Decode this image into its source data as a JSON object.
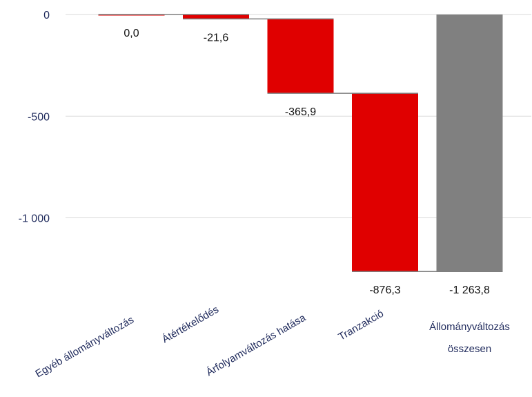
{
  "chart_data": {
    "type": "waterfall",
    "title": "",
    "xlabel": "",
    "ylabel": "",
    "ylim": [
      -1300,
      0
    ],
    "yticks": [
      0,
      -500,
      -1000
    ],
    "ytick_labels": [
      "0",
      "-500",
      "-1 000"
    ],
    "grid": true,
    "legend": "none",
    "categories": [
      "Egyéb állományváltozás",
      "Átértékelődés",
      "Árfolyamváltozás hatása",
      "Tranzakció",
      "Állományváltozás összesen"
    ],
    "values": [
      0.0,
      -21.6,
      -365.9,
      -876.3,
      -1263.8
    ],
    "value_labels": [
      "0,0",
      "-21,6",
      "-365,9",
      "-876,3",
      "-1 263,8"
    ],
    "kinds": [
      "delta",
      "delta",
      "delta",
      "delta",
      "total"
    ],
    "colors": {
      "delta": "#e00000",
      "total": "#808080",
      "axis_text": "#1f2a5c",
      "grid": "#d9d9d9",
      "connector": "#7f7f7f"
    }
  }
}
